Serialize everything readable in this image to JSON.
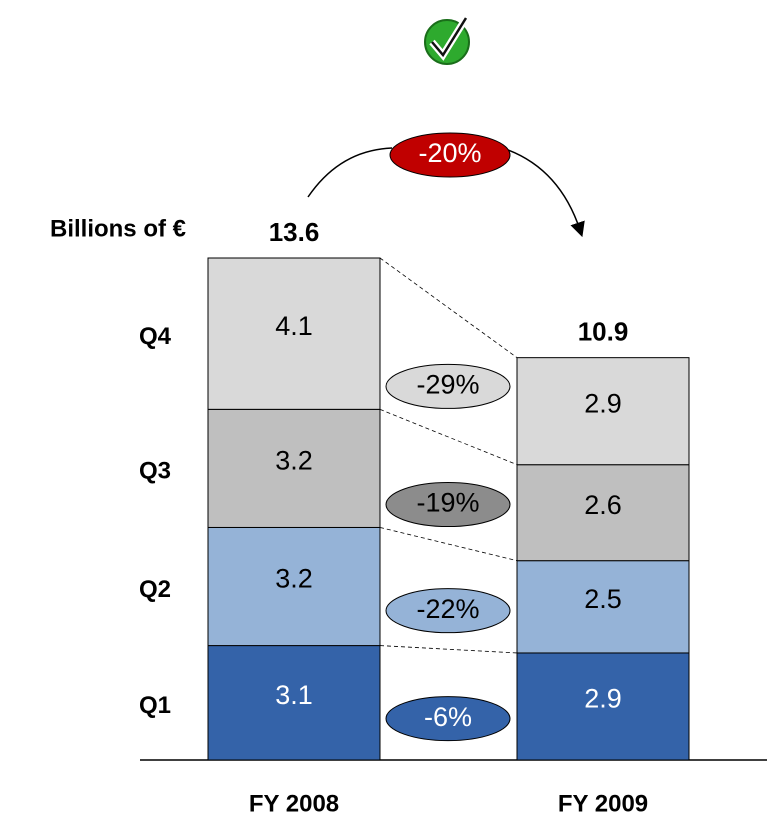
{
  "chart_data": {
    "type": "stacked_bar",
    "y_label": "Billions of €",
    "categories": [
      "FY 2008",
      "FY 2009"
    ],
    "totals": [
      13.6,
      10.9
    ],
    "series": [
      {
        "name": "Q1",
        "color": "#3463a9",
        "values": [
          3.1,
          2.9
        ]
      },
      {
        "name": "Q2",
        "color": "#95b3d7",
        "values": [
          3.2,
          2.5
        ]
      },
      {
        "name": "Q3",
        "color": "#bfbfbf",
        "values": [
          3.2,
          2.6
        ]
      },
      {
        "name": "Q4",
        "color": "#d9d9d9",
        "values": [
          4.1,
          2.9
        ]
      }
    ],
    "changes": [
      {
        "value": -6,
        "label": "-6%"
      },
      {
        "value": -22,
        "label": "-22%"
      },
      {
        "value": -19,
        "label": "-19%"
      },
      {
        "value": -29,
        "label": "-29%"
      }
    ],
    "change_colors": [
      "#3463a9",
      "#95b3d7",
      "#8c8c8c",
      "#d9d9d9"
    ],
    "total_change": {
      "value": -20,
      "label": "-20%"
    },
    "total_change_color": "#c00000"
  }
}
